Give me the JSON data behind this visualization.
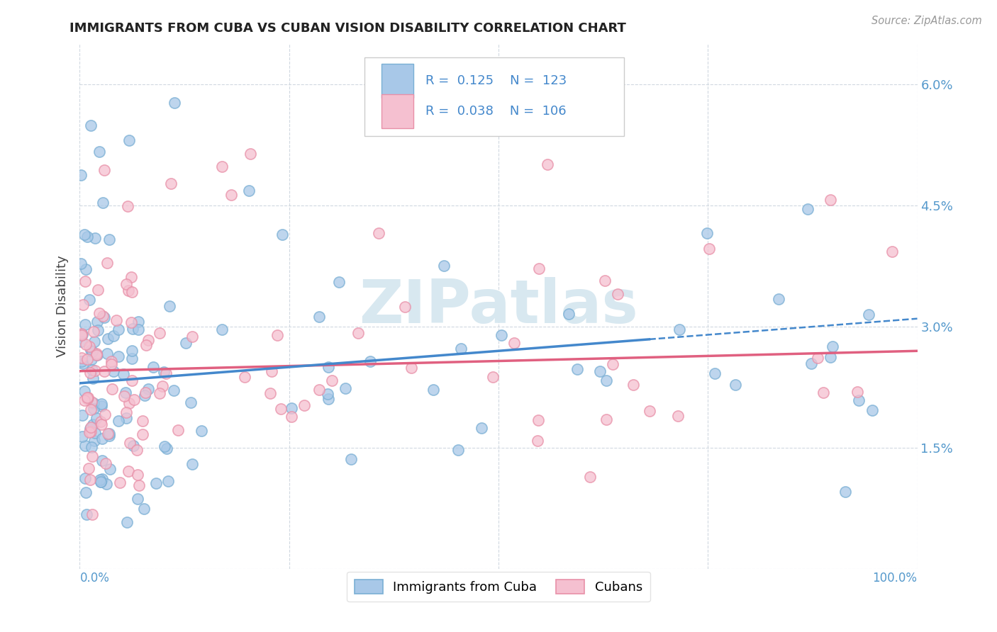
{
  "title": "IMMIGRANTS FROM CUBA VS CUBAN VISION DISABILITY CORRELATION CHART",
  "source": "Source: ZipAtlas.com",
  "ylabel": "Vision Disability",
  "yticks": [
    0.0,
    0.015,
    0.03,
    0.045,
    0.06
  ],
  "ytick_labels": [
    "",
    "1.5%",
    "3.0%",
    "4.5%",
    "6.0%"
  ],
  "xlim": [
    0.0,
    1.0
  ],
  "ylim": [
    0.0,
    0.065
  ],
  "series1_name": "Immigrants from Cuba",
  "series1_R": "0.125",
  "series1_N": "123",
  "series1_color": "#a8c8e8",
  "series1_edge_color": "#7aafd4",
  "series2_name": "Cubans",
  "series2_R": "0.038",
  "series2_N": "106",
  "series2_color": "#f5c0d0",
  "series2_edge_color": "#e890a8",
  "trend1_solid_end": 0.68,
  "trend1_start_y": 0.023,
  "trend1_end_y": 0.031,
  "trend2_start_y": 0.0245,
  "trend2_end_y": 0.027,
  "trend1_color": "#4488cc",
  "trend2_color": "#e06080",
  "watermark_text": "ZIPatlas",
  "watermark_color": "#d8e8f0",
  "background_color": "#ffffff",
  "grid_color": "#d0d8e0",
  "title_color": "#222222",
  "axis_label_color": "#5599cc",
  "legend_text_color": "#4488cc",
  "seed": 77
}
